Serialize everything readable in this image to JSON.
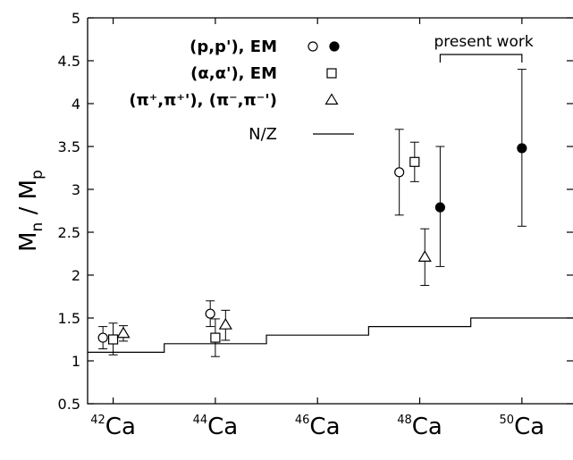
{
  "chart_data": {
    "type": "scatter",
    "title": "",
    "ylabel": {
      "main": "M",
      "sub_n": "n",
      "sep": " / ",
      "sub_p": "p"
    },
    "xlabel": "",
    "ylim": [
      0.5,
      5
    ],
    "y_ticks": [
      "0.5",
      "1",
      "1.5",
      "2",
      "2.5",
      "3",
      "3.5",
      "4",
      "4.5",
      "5"
    ],
    "x_range": [
      41.5,
      51
    ],
    "x_ticks": [
      {
        "x": 42,
        "sup": "42",
        "label": "Ca"
      },
      {
        "x": 44,
        "sup": "44",
        "label": "Ca"
      },
      {
        "x": 46,
        "sup": "46",
        "label": "Ca"
      },
      {
        "x": 48,
        "sup": "48",
        "label": "Ca"
      },
      {
        "x": 50,
        "sup": "50",
        "label": "Ca"
      }
    ],
    "grid": false,
    "legend_position": "top-left",
    "annotation": "present work",
    "legend": [
      {
        "label": "(p,p'), EM",
        "markers": [
          "circle-open",
          "circle-filled"
        ]
      },
      {
        "label": "(α,α'), EM",
        "markers": [
          "square-open"
        ]
      },
      {
        "label": "(π⁺,π⁺'), (π⁻,π⁻')",
        "markers": [
          "triangle-open"
        ]
      },
      {
        "label": "N/Z",
        "markers": [
          "line"
        ]
      }
    ],
    "series": [
      {
        "name": "(p,p'), EM",
        "marker": "circle-open",
        "points": [
          {
            "x": 41.8,
            "y": 1.27,
            "lo": 1.14,
            "hi": 1.4
          },
          {
            "x": 43.9,
            "y": 1.55,
            "lo": 1.4,
            "hi": 1.7
          },
          {
            "x": 47.6,
            "y": 3.2,
            "lo": 2.7,
            "hi": 3.7
          }
        ]
      },
      {
        "name": "(p,p'), EM",
        "marker": "circle-filled",
        "points": [
          {
            "x": 48.4,
            "y": 2.79,
            "lo": 2.1,
            "hi": 3.5
          },
          {
            "x": 50.0,
            "y": 3.48,
            "lo": 2.57,
            "hi": 4.4
          }
        ]
      },
      {
        "name": "(α,α'), EM",
        "marker": "square-open",
        "points": [
          {
            "x": 42.0,
            "y": 1.25,
            "lo": 1.07,
            "hi": 1.44
          },
          {
            "x": 44.0,
            "y": 1.27,
            "lo": 1.05,
            "hi": 1.49
          },
          {
            "x": 47.9,
            "y": 3.32,
            "lo": 3.09,
            "hi": 3.55
          }
        ]
      },
      {
        "name": "(π⁺,π⁺'), (π⁻,π⁻')",
        "marker": "triangle-open",
        "points": [
          {
            "x": 42.2,
            "y": 1.32,
            "lo": 1.23,
            "hi": 1.41
          },
          {
            "x": 44.2,
            "y": 1.42,
            "lo": 1.24,
            "hi": 1.59
          },
          {
            "x": 48.1,
            "y": 2.21,
            "lo": 1.88,
            "hi": 2.54
          }
        ]
      },
      {
        "name": "N/Z",
        "marker": "step-line",
        "steps": [
          {
            "x0": 41.5,
            "x1": 43.0,
            "y": 1.1
          },
          {
            "x0": 43.0,
            "x1": 45.0,
            "y": 1.2
          },
          {
            "x0": 45.0,
            "x1": 47.0,
            "y": 1.3
          },
          {
            "x0": 47.0,
            "x1": 49.0,
            "y": 1.4
          },
          {
            "x0": 49.0,
            "x1": 51.0,
            "y": 1.5
          }
        ]
      }
    ]
  }
}
